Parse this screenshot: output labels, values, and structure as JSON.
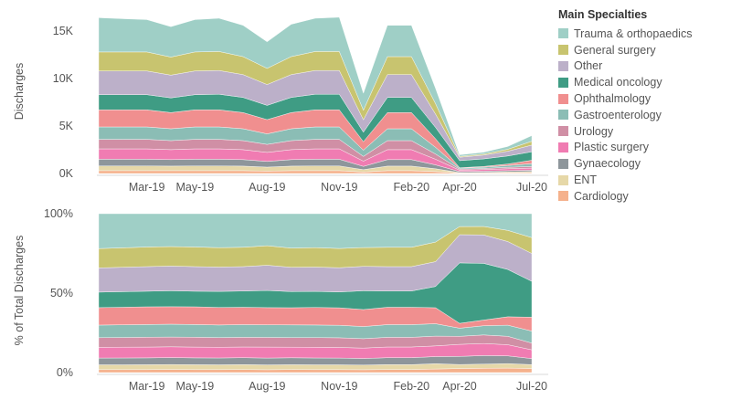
{
  "legend": {
    "title": "Main Specialties",
    "items": [
      {
        "label": "Trauma & orthopaedics",
        "color": "#9fcfc6"
      },
      {
        "label": "General surgery",
        "color": "#c8c46f"
      },
      {
        "label": "Other",
        "color": "#bcb0c9"
      },
      {
        "label": "Medical oncology",
        "color": "#3f9c84"
      },
      {
        "label": "Ophthalmology",
        "color": "#f08f8f"
      },
      {
        "label": "Gastroenterology",
        "color": "#8bbdb5"
      },
      {
        "label": "Urology",
        "color": "#d08fa5"
      },
      {
        "label": "Plastic surgery",
        "color": "#f07cb2"
      },
      {
        "label": "Gynaecology",
        "color": "#8e969b"
      },
      {
        "label": "ENT",
        "color": "#e6d8a8"
      },
      {
        "label": "Cardiology",
        "color": "#f5b18c"
      }
    ]
  },
  "chart_data": [
    {
      "type": "area",
      "stacked": true,
      "ylabel": "Discharges",
      "xlabel": "",
      "ylim": [
        0,
        17500
      ],
      "yticks": [
        {
          "value": 0,
          "label": "0K"
        },
        {
          "value": 5000,
          "label": "5K"
        },
        {
          "value": 10000,
          "label": "10K"
        },
        {
          "value": 15000,
          "label": "15K"
        }
      ],
      "xticks": [
        "Mar-19",
        "May-19",
        "Aug-19",
        "Nov-19",
        "Feb-20",
        "Apr-20",
        "Jul-20"
      ],
      "x": [
        "Jan-19",
        "Feb-19",
        "Mar-19",
        "Apr-19",
        "May-19",
        "Jun-19",
        "Jul-19",
        "Aug-19",
        "Sep-19",
        "Oct-19",
        "Nov-19",
        "Dec-19",
        "Jan-20",
        "Feb-20",
        "Mar-20",
        "Apr-20",
        "May-20",
        "Jun-20",
        "Jul-20"
      ],
      "series": [
        {
          "name": "Cardiology",
          "values": [
            300,
            300,
            300,
            300,
            300,
            300,
            300,
            250,
            300,
            300,
            300,
            150,
            300,
            300,
            200,
            50,
            60,
            80,
            100
          ]
        },
        {
          "name": "ENT",
          "values": [
            500,
            500,
            500,
            480,
            500,
            500,
            480,
            420,
            480,
            500,
            500,
            250,
            480,
            480,
            300,
            50,
            60,
            80,
            100
          ]
        },
        {
          "name": "Gynaecology",
          "values": [
            700,
            700,
            700,
            680,
            700,
            700,
            680,
            600,
            680,
            700,
            700,
            350,
            680,
            680,
            400,
            100,
            120,
            140,
            150
          ]
        },
        {
          "name": "Plastic surgery",
          "values": [
            1100,
            1100,
            1100,
            1050,
            1100,
            1100,
            1050,
            950,
            1050,
            1100,
            1100,
            550,
            1050,
            1050,
            600,
            150,
            170,
            200,
            220
          ]
        },
        {
          "name": "Urology",
          "values": [
            1000,
            1000,
            1000,
            950,
            1000,
            1000,
            950,
            850,
            950,
            1000,
            1000,
            500,
            950,
            950,
            550,
            100,
            120,
            150,
            170
          ]
        },
        {
          "name": "Gastroenterology",
          "values": [
            1300,
            1300,
            1300,
            1250,
            1300,
            1300,
            1250,
            1100,
            1250,
            1300,
            1300,
            650,
            1250,
            1250,
            700,
            100,
            130,
            200,
            300
          ]
        },
        {
          "name": "Ophthalmology",
          "values": [
            1800,
            1800,
            1800,
            1700,
            1800,
            1800,
            1700,
            1500,
            1700,
            1800,
            1800,
            900,
            1700,
            1700,
            900,
            60,
            80,
            150,
            350
          ]
        },
        {
          "name": "Medical oncology",
          "values": [
            1600,
            1600,
            1600,
            1550,
            1600,
            1650,
            1600,
            1500,
            1600,
            1650,
            1650,
            1000,
            1600,
            1600,
            1200,
            750,
            800,
            850,
            900
          ]
        },
        {
          "name": "Other",
          "values": [
            2500,
            2500,
            2500,
            2400,
            2500,
            2500,
            2400,
            2200,
            2400,
            2500,
            2500,
            1300,
            2400,
            2400,
            1400,
            350,
            400,
            500,
            700
          ]
        },
        {
          "name": "General surgery",
          "values": [
            2000,
            2000,
            2000,
            1900,
            2000,
            2000,
            1900,
            1700,
            1900,
            2000,
            2000,
            1000,
            1900,
            1900,
            1100,
            100,
            120,
            200,
            400
          ]
        },
        {
          "name": "Trauma & orthopaedics",
          "values": [
            3600,
            3500,
            3400,
            3200,
            3400,
            3500,
            3300,
            2800,
            3400,
            3500,
            3600,
            1800,
            3300,
            3300,
            1600,
            160,
            180,
            300,
            600
          ]
        }
      ]
    },
    {
      "type": "area",
      "stacked": true,
      "normalized": true,
      "ylabel": "% of Total Discharges",
      "xlabel": "",
      "ylim": [
        0,
        100
      ],
      "yticks": [
        {
          "value": 0,
          "label": "0%"
        },
        {
          "value": 50,
          "label": "50%"
        },
        {
          "value": 100,
          "label": "100%"
        }
      ],
      "xticks": [
        "Mar-19",
        "May-19",
        "Aug-19",
        "Nov-19",
        "Feb-20",
        "Apr-20",
        "Jul-20"
      ],
      "x": [
        "Jan-19",
        "Feb-19",
        "Mar-19",
        "Apr-19",
        "May-19",
        "Jun-19",
        "Jul-19",
        "Aug-19",
        "Sep-19",
        "Oct-19",
        "Nov-19",
        "Dec-19",
        "Jan-20",
        "Feb-20",
        "Mar-20",
        "Apr-20",
        "May-20",
        "Jun-20",
        "Jul-20"
      ],
      "note_values": "percent shares; same series as above"
    }
  ]
}
